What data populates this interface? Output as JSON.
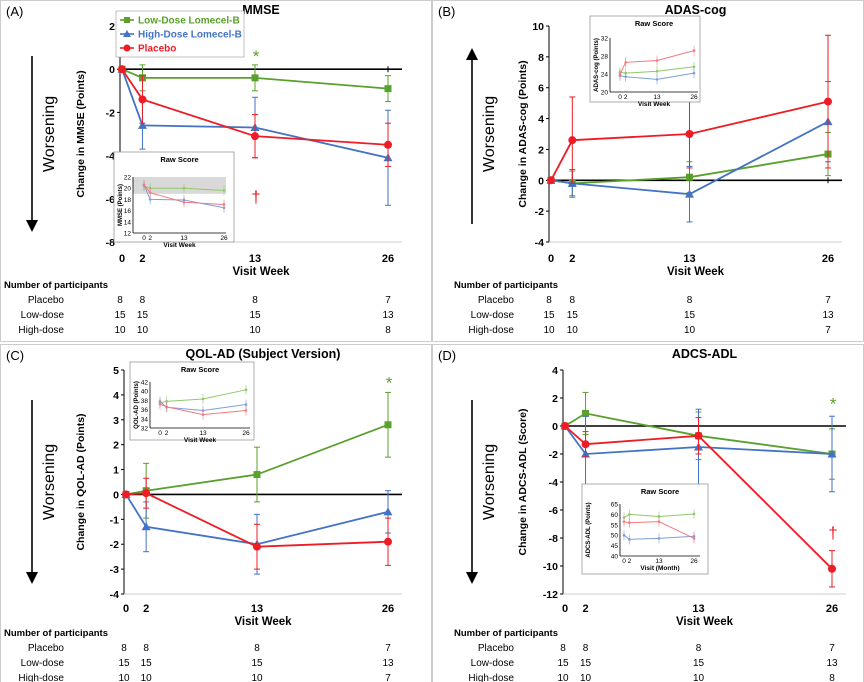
{
  "chart_data": [
    {
      "type": "line",
      "panel_label": "(A)",
      "title": "MMSE",
      "ylabel": "Change in MMSE (Points)",
      "xlabel": "Visit Week",
      "arrow_label": "Worsening",
      "arrow_direction": "down",
      "ylim": [
        -8,
        2
      ],
      "yticks": [
        "2",
        "0",
        "-2",
        "-4",
        "-6",
        "-8"
      ],
      "xticks": [
        "0",
        "2",
        "13",
        "26"
      ],
      "series": [
        {
          "name": "Low-Dose Lomecel-B",
          "x": [
            0,
            2,
            13,
            26
          ],
          "y": [
            0,
            -0.4,
            -0.4,
            -0.9
          ],
          "err": [
            0,
            0.6,
            0.6,
            0.6
          ],
          "color": "#5aa02c",
          "marker": "square"
        },
        {
          "name": "High-Dose Lomecel-B",
          "x": [
            0,
            2,
            13,
            26
          ],
          "y": [
            0,
            -2.6,
            -2.7,
            -4.1
          ],
          "err": [
            0,
            1.1,
            1.4,
            2.2
          ],
          "color": "#4472c4",
          "marker": "triangle"
        },
        {
          "name": "Placebo",
          "x": [
            0,
            2,
            13,
            26
          ],
          "y": [
            0,
            -1.4,
            -3.1,
            -3.5
          ],
          "err": [
            0,
            1.1,
            1.0,
            1.0
          ],
          "color": "#ee1c25",
          "marker": "circle"
        }
      ],
      "annotations": [
        {
          "text": "*",
          "x": 13,
          "y": 0.6,
          "color": "#5aa02c"
        },
        {
          "text": "†",
          "x": 13,
          "y": -5.9,
          "color": "#ee1c25"
        }
      ],
      "inset": {
        "title": "Raw Score",
        "ylabel": "MMSE (Points)",
        "xlabel": "Visit Week",
        "ylim": [
          12,
          22
        ],
        "yticks": [
          "22",
          "20",
          "18",
          "16",
          "14",
          "12"
        ],
        "xticks": [
          "0",
          "2",
          "13",
          "26"
        ],
        "band": [
          19,
          22
        ],
        "series": [
          {
            "name": "Low-Dose Lomecel-B",
            "y": [
              20.4,
              20.0,
              20.0,
              19.6
            ]
          },
          {
            "name": "High-Dose Lomecel-B",
            "y": [
              20.6,
              18.0,
              17.9,
              16.5
            ]
          },
          {
            "name": "Placebo",
            "y": [
              20.6,
              19.2,
              17.5,
              17.1
            ]
          }
        ]
      },
      "participants": {
        "heading": "Number of participants",
        "rows": [
          {
            "label": "Placebo",
            "values": [
              "8",
              "8",
              "8",
              "7"
            ]
          },
          {
            "label": "Low-dose",
            "values": [
              "15",
              "15",
              "15",
              "13"
            ]
          },
          {
            "label": "High-dose",
            "values": [
              "10",
              "10",
              "10",
              "8"
            ]
          }
        ]
      }
    },
    {
      "type": "line",
      "panel_label": "(B)",
      "title": "ADAS-cog",
      "ylabel": "Change in ADAS-cog (Points)",
      "xlabel": "Visit Week",
      "arrow_label": "Worsening",
      "arrow_direction": "up",
      "ylim": [
        -4,
        10
      ],
      "yticks": [
        "10",
        "8",
        "6",
        "4",
        "2",
        "0",
        "-2",
        "-4"
      ],
      "xticks": [
        "0",
        "2",
        "13",
        "26"
      ],
      "series": [
        {
          "name": "Low-Dose Lomecel-B",
          "x": [
            0,
            2,
            13,
            26
          ],
          "y": [
            0,
            -0.2,
            0.2,
            1.7
          ],
          "err": [
            0,
            0.8,
            1.0,
            1.4
          ],
          "color": "#5aa02c",
          "marker": "square"
        },
        {
          "name": "High-Dose Lomecel-B",
          "x": [
            0,
            2,
            13,
            26
          ],
          "y": [
            0,
            -0.2,
            -0.9,
            3.8
          ],
          "err": [
            0,
            0.9,
            1.8,
            2.6
          ],
          "color": "#4472c4",
          "marker": "triangle"
        },
        {
          "name": "Placebo",
          "x": [
            0,
            2,
            13,
            26
          ],
          "y": [
            0,
            2.6,
            3.0,
            5.1
          ],
          "err": [
            0,
            2.8,
            2.2,
            4.3
          ],
          "color": "#ee1c25",
          "marker": "circle"
        }
      ],
      "annotations": [],
      "inset": {
        "title": "Raw Score",
        "ylabel": "ADAS-cog (Points)",
        "xlabel": "Visit Week",
        "ylim": [
          20,
          32
        ],
        "yticks": [
          "32",
          "28",
          "24",
          "20"
        ],
        "xticks": [
          "0",
          "2",
          "13",
          "26"
        ],
        "band": null,
        "series": [
          {
            "name": "Low-Dose Lomecel-B",
            "y": [
              24.4,
              24.2,
              24.6,
              25.6
            ]
          },
          {
            "name": "High-Dose Lomecel-B",
            "y": [
              23.6,
              23.4,
              22.8,
              24.2
            ]
          },
          {
            "name": "Placebo",
            "y": [
              24.0,
              26.6,
              27.0,
              29.2
            ]
          }
        ]
      },
      "participants": {
        "heading": "Number of participants",
        "rows": [
          {
            "label": "Placebo",
            "values": [
              "8",
              "8",
              "8",
              "7"
            ]
          },
          {
            "label": "Low-dose",
            "values": [
              "15",
              "15",
              "15",
              "13"
            ]
          },
          {
            "label": "High-dose",
            "values": [
              "10",
              "10",
              "10",
              "7"
            ]
          }
        ]
      }
    },
    {
      "type": "line",
      "panel_label": "(C)",
      "title": "QOL-AD (Subject Version)",
      "ylabel": "Change in QOL-AD (Points)",
      "xlabel": "Visit Week",
      "arrow_label": "Worsening",
      "arrow_direction": "down",
      "ylim": [
        -4,
        5
      ],
      "yticks": [
        "5",
        "4",
        "3",
        "2",
        "1",
        "0",
        "-1",
        "-2",
        "-3",
        "-4"
      ],
      "xticks": [
        "0",
        "2",
        "13",
        "26"
      ],
      "series": [
        {
          "name": "Low-Dose Lomecel-B",
          "x": [
            0,
            2,
            13,
            26
          ],
          "y": [
            0,
            0.15,
            0.8,
            2.8
          ],
          "err": [
            0,
            1.1,
            1.1,
            1.3
          ],
          "color": "#5aa02c",
          "marker": "square"
        },
        {
          "name": "High-Dose Lomecel-B",
          "x": [
            0,
            2,
            13,
            26
          ],
          "y": [
            0,
            -1.3,
            -2.0,
            -0.7
          ],
          "err": [
            0,
            1.0,
            1.2,
            0.85
          ],
          "color": "#4472c4",
          "marker": "triangle"
        },
        {
          "name": "Placebo",
          "x": [
            0,
            2,
            13,
            26
          ],
          "y": [
            0,
            0.05,
            -2.1,
            -1.9
          ],
          "err": [
            0,
            0.6,
            0.9,
            0.95
          ],
          "color": "#ee1c25",
          "marker": "circle"
        }
      ],
      "annotations": [
        {
          "text": "*",
          "x": 26,
          "y": 4.5,
          "color": "#5aa02c"
        }
      ],
      "inset": {
        "title": "Raw Score",
        "ylabel": "QOL-AD (Points)",
        "xlabel": "Visit Week",
        "ylim": [
          32,
          42
        ],
        "yticks": [
          "42",
          "40",
          "38",
          "36",
          "34",
          "32"
        ],
        "xticks": [
          "0",
          "2",
          "13",
          "26"
        ],
        "band": null,
        "series": [
          {
            "name": "Low-Dose Lomecel-B",
            "y": [
              37.5,
              37.8,
              38.3,
              40.3
            ]
          },
          {
            "name": "High-Dose Lomecel-B",
            "y": [
              37.8,
              36.5,
              35.8,
              37.1
            ]
          },
          {
            "name": "Placebo",
            "y": [
              37.2,
              36.6,
              34.9,
              35.8
            ]
          }
        ]
      },
      "participants": {
        "heading": "Number of participants",
        "rows": [
          {
            "label": "Placebo",
            "values": [
              "8",
              "8",
              "8",
              "7"
            ]
          },
          {
            "label": "Low-dose",
            "values": [
              "15",
              "15",
              "15",
              "13"
            ]
          },
          {
            "label": "High-dose",
            "values": [
              "10",
              "10",
              "10",
              "7"
            ]
          }
        ]
      }
    },
    {
      "type": "line",
      "panel_label": "(D)",
      "title": "ADCS-ADL",
      "ylabel": "Change in ADCS-ADL (Score)",
      "xlabel": "Visit Week",
      "arrow_label": "Worsening",
      "arrow_direction": "down",
      "ylim": [
        -12,
        4
      ],
      "yticks": [
        "4",
        "2",
        "0",
        "-2",
        "-4",
        "-6",
        "-8",
        "-10",
        "-12"
      ],
      "xticks": [
        "0",
        "2",
        "13",
        "26"
      ],
      "series": [
        {
          "name": "Low-Dose Lomecel-B",
          "x": [
            0,
            2,
            13,
            26
          ],
          "y": [
            0,
            0.9,
            -0.7,
            -2.0
          ],
          "err": [
            0,
            1.5,
            1.7,
            1.8
          ],
          "color": "#5aa02c",
          "marker": "square"
        },
        {
          "name": "High-Dose Lomecel-B",
          "x": [
            0,
            2,
            13,
            26
          ],
          "y": [
            0,
            -2.0,
            -1.5,
            -2.0
          ],
          "err": [
            0,
            2.7,
            2.7,
            2.7
          ],
          "color": "#4472c4",
          "marker": "triangle"
        },
        {
          "name": "Placebo",
          "x": [
            0,
            2,
            13,
            26
          ],
          "y": [
            0,
            -1.3,
            -0.7,
            -10.2
          ],
          "err": [
            0,
            0.9,
            1.3,
            1.3
          ],
          "color": "#ee1c25",
          "marker": "circle"
        }
      ],
      "annotations": [
        {
          "text": "*",
          "x": 26,
          "y": 1.6,
          "color": "#5aa02c"
        },
        {
          "text": "†",
          "x": 26,
          "y": -7.6,
          "color": "#ee1c25"
        }
      ],
      "inset": {
        "title": "Raw Score",
        "ylabel": "ADCS-ADL (Points)",
        "xlabel": "Visit (Month)",
        "ylim": [
          40,
          65
        ],
        "yticks": [
          "65",
          "60",
          "55",
          "50",
          "45",
          "40"
        ],
        "xticks": [
          "0",
          "2",
          "13",
          "26"
        ],
        "band": null,
        "series": [
          {
            "name": "Low-Dose Lomecel-B",
            "y": [
              58.5,
              60.0,
              59.0,
              60.2
            ]
          },
          {
            "name": "High-Dose Lomecel-B",
            "y": [
              50.0,
              48.0,
              48.5,
              49.5
            ]
          },
          {
            "name": "Placebo",
            "y": [
              56.5,
              56.0,
              56.5,
              48.5
            ]
          }
        ]
      },
      "participants": {
        "heading": "Number of participants",
        "rows": [
          {
            "label": "Placebo",
            "values": [
              "8",
              "8",
              "8",
              "7"
            ]
          },
          {
            "label": "Low-dose",
            "values": [
              "15",
              "15",
              "15",
              "13"
            ]
          },
          {
            "label": "High-dose",
            "values": [
              "10",
              "10",
              "10",
              "8"
            ]
          }
        ]
      }
    }
  ],
  "legend": {
    "items": [
      {
        "label": "Low-Dose Lomecel-B",
        "color": "#5aa02c",
        "marker": "square"
      },
      {
        "label": "High-Dose Lomecel-B",
        "color": "#4472c4",
        "marker": "triangle"
      },
      {
        "label": "Placebo",
        "color": "#ee1c25",
        "marker": "circle"
      }
    ]
  }
}
